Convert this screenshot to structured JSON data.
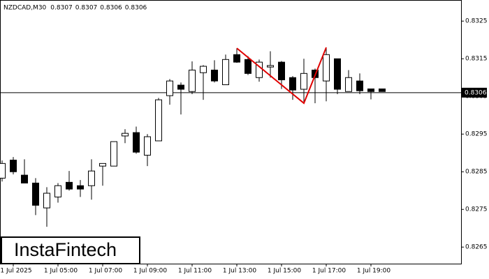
{
  "chart_data": {
    "type": "candlestick",
    "title": "NZDCAD,M30",
    "header_values": [
      0.8307,
      0.8307,
      0.8306,
      0.8306
    ],
    "logo": "InstaFintech",
    "categories": [
      null,
      "1 Jul 2025",
      null,
      null,
      null,
      "1 Jul 05:00",
      null,
      null,
      null,
      "1 Jul 07:00",
      null,
      null,
      null,
      "1 Jul 09:00",
      null,
      null,
      null,
      "1 Jul 11:00",
      null,
      null,
      null,
      "1 Jul 13:00",
      null,
      null,
      null,
      "1 Jul 15:00",
      null,
      null,
      null,
      "1 Jul 17:00",
      null,
      null,
      null,
      "1 Jul 19:00",
      null
    ],
    "open": [
      0.82833,
      0.82881,
      0.82841,
      0.8282,
      0.82754,
      0.82783,
      0.82822,
      0.82813,
      0.82813,
      0.82865,
      0.82865,
      0.82945,
      0.82954,
      0.82894,
      0.82932,
      0.83052,
      0.8308,
      0.83063,
      0.83113,
      0.8312,
      0.83081,
      0.83161,
      0.83148,
      0.831,
      0.83128,
      0.83141,
      0.831,
      0.83069,
      0.8312,
      0.83091,
      0.8315,
      0.83063,
      0.83091,
      0.8307,
      0.8307
    ],
    "high": [
      0.8288,
      0.82889,
      0.82883,
      0.82833,
      0.82809,
      0.8282,
      0.82852,
      0.82828,
      0.82883,
      0.82872,
      0.8293,
      0.82963,
      0.8297,
      0.8295,
      0.83046,
      0.83096,
      0.83087,
      0.83143,
      0.83133,
      0.83146,
      0.83161,
      0.83178,
      0.83157,
      0.83148,
      0.8317,
      0.83144,
      0.83104,
      0.8315,
      0.83124,
      0.8318,
      0.8315,
      0.8312,
      0.83111,
      0.8307,
      0.8307
    ],
    "low": [
      0.82824,
      0.82843,
      0.8282,
      0.82735,
      0.82704,
      0.82768,
      0.828,
      0.82783,
      0.82776,
      0.82813,
      0.82865,
      0.82926,
      0.82898,
      0.82865,
      0.82932,
      0.83028,
      0.83002,
      0.83056,
      0.83041,
      0.83087,
      0.8308,
      0.83139,
      0.83107,
      0.83089,
      0.831,
      0.8307,
      0.83041,
      0.83032,
      0.83032,
      0.83037,
      0.83056,
      0.83063,
      0.83056,
      0.83042,
      0.83063
    ],
    "close": [
      0.82872,
      0.8285,
      0.8282,
      0.82761,
      0.82793,
      0.82813,
      0.82804,
      0.82804,
      0.82852,
      0.82872,
      0.8293,
      0.82952,
      0.82902,
      0.82943,
      0.83041,
      0.83091,
      0.83069,
      0.8312,
      0.8313,
      0.83091,
      0.83148,
      0.83141,
      0.83111,
      0.83141,
      0.83132,
      0.83094,
      0.83067,
      0.83111,
      0.831,
      0.83161,
      0.83069,
      0.831,
      0.83065,
      0.83063,
      0.83063
    ],
    "up_color": "#ffffff",
    "down_color": "#000000",
    "current_price": 0.8306,
    "pattern": {
      "color": "#e00000",
      "x": [
        21,
        27,
        29
      ],
      "values": [
        0.83178,
        0.83032,
        0.8318
      ]
    },
    "ylim": [
      0.82606,
      0.83306
    ],
    "yticks": [
      0.8265,
      0.8275,
      0.8285,
      0.8295,
      0.8305,
      0.8315,
      0.8325
    ]
  }
}
